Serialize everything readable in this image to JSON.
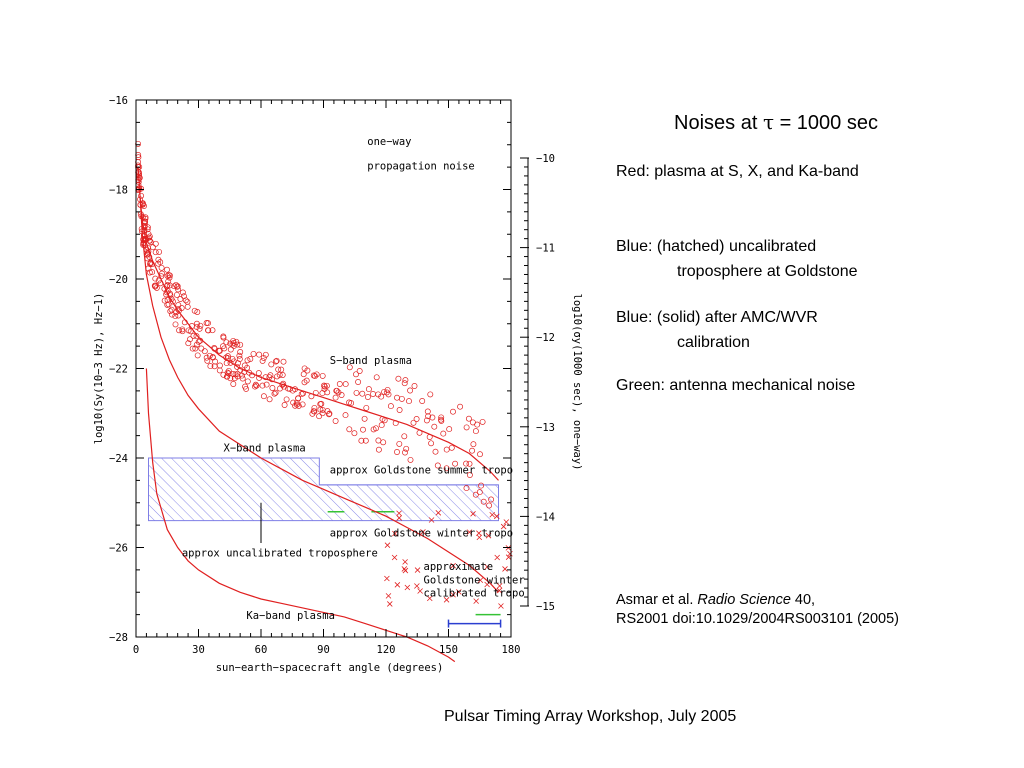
{
  "side_panel": {
    "title_prefix": "Noises at ",
    "title_symbol": "τ",
    "title_suffix": " = 1000 sec",
    "red": "Red:  plasma at S, X, and Ka-band",
    "blue_hatched_line1": "Blue:  (hatched) uncalibrated",
    "blue_hatched_line2": "troposphere at Goldstone",
    "blue_solid_line1": "Blue:  (solid) after AMC/WVR",
    "blue_solid_line2": "calibration",
    "green": "Green:  antenna mechanical noise"
  },
  "citation": {
    "authors": "Asmar et al. ",
    "journal": "Radio Science",
    "volume": " 40,",
    "line2": "RS2001 doi:10.1029/2004RS003101 (2005)"
  },
  "footer": "Pulsar Timing Array Workshop, July 2005",
  "colors": {
    "plasma": "#e02020",
    "troposphere": "#7f7fe6",
    "calibrated": "#2b3fd0",
    "antenna": "#35c235",
    "axis": "#000000"
  },
  "chart_data": {
    "type": "scatter",
    "xlabel": "sun−earth−spacecraft angle (degrees)",
    "ylabel": "log10(Sy(10−3 Hz), Hz−1)",
    "ylabel_right": "log10(σy(1000 sec), one−way)",
    "xlim": [
      0,
      180
    ],
    "ylim": [
      -28,
      -16
    ],
    "ylim_right": [
      -15.33,
      -9.33
    ],
    "xticks": [
      "0",
      "30",
      "60",
      "90",
      "120",
      "150",
      "180"
    ],
    "yticks": [
      "−16",
      "−18",
      "−20",
      "−22",
      "−24",
      "−26",
      "−28"
    ],
    "yticks_right": [
      "−10",
      "−11",
      "−12",
      "−13",
      "−14",
      "−15"
    ],
    "annotations": {
      "one_way_1": "one−way",
      "one_way_2": "propagation noise",
      "s_band": "S−band plasma",
      "x_band": "X−band plasma",
      "ka_band": "Ka−band plasma",
      "summer": "approx Goldstone summer tropo",
      "winter": "approx Goldstone winter tropo",
      "uncal": "approx uncalibrated troposphere",
      "calib_1": "approximate",
      "calib_2": "Goldstone winter",
      "calib_3": "calibrated tropo"
    },
    "series": [
      {
        "name": "S−band plasma",
        "x": [
          1,
          2,
          3,
          5,
          8,
          12,
          16,
          20,
          25,
          30,
          35,
          40,
          45,
          50,
          55,
          60,
          70,
          80,
          90,
          100,
          110,
          120,
          130,
          140,
          150,
          160,
          170,
          174
        ],
        "y": [
          -17.5,
          -18.2,
          -18.7,
          -19.2,
          -19.6,
          -20.0,
          -20.4,
          -20.7,
          -21.0,
          -21.3,
          -21.5,
          -21.7,
          -21.85,
          -22.0,
          -22.1,
          -22.2,
          -22.35,
          -22.5,
          -22.65,
          -22.8,
          -22.95,
          -23.1,
          -23.25,
          -23.45,
          -23.65,
          -23.9,
          -24.3,
          -24.5
        ]
      },
      {
        "name": "X−band plasma",
        "x": [
          2,
          3,
          5,
          8,
          12,
          16,
          20,
          25,
          30,
          40,
          50,
          60,
          70,
          80,
          90,
          100,
          110,
          120,
          130,
          140,
          150,
          160,
          170,
          174
        ],
        "y": [
          -18.2,
          -19.0,
          -19.9,
          -20.6,
          -21.3,
          -21.8,
          -22.2,
          -22.6,
          -22.9,
          -23.4,
          -23.7,
          -24.0,
          -24.25,
          -24.5,
          -24.7,
          -24.9,
          -25.1,
          -25.3,
          -25.55,
          -25.8,
          -26.1,
          -26.4,
          -26.8,
          -27.0
        ]
      },
      {
        "name": "Ka−band plasma",
        "x": [
          5,
          6,
          8,
          10,
          15,
          20,
          25,
          30,
          40,
          50,
          60,
          70,
          80,
          90,
          100,
          110,
          120,
          130,
          140,
          150,
          153
        ],
        "y": [
          -22.0,
          -23.0,
          -24.1,
          -24.8,
          -25.6,
          -26.0,
          -26.3,
          -26.5,
          -26.8,
          -27.0,
          -27.15,
          -27.25,
          -27.35,
          -27.45,
          -27.55,
          -27.7,
          -27.85,
          -28.0,
          -28.2,
          -28.45,
          -28.55
        ]
      },
      {
        "name": "approx Goldstone summer tropo",
        "x": [
          6,
          88,
          88,
          174
        ],
        "y": [
          -24.0,
          -24.0,
          -24.6,
          -24.6
        ]
      },
      {
        "name": "approx Goldstone winter tropo",
        "x": [
          6,
          174
        ],
        "y": [
          -25.4,
          -25.4
        ]
      },
      {
        "name": "calibrated tropo",
        "x": [
          150,
          175
        ],
        "y": [
          -27.7,
          -27.7
        ]
      },
      {
        "name": "antenna mechanical noise",
        "segments": [
          [
            92,
            100,
            -25.2
          ],
          [
            113,
            124,
            -25.2
          ],
          [
            163,
            175,
            -27.5
          ]
        ]
      }
    ]
  }
}
